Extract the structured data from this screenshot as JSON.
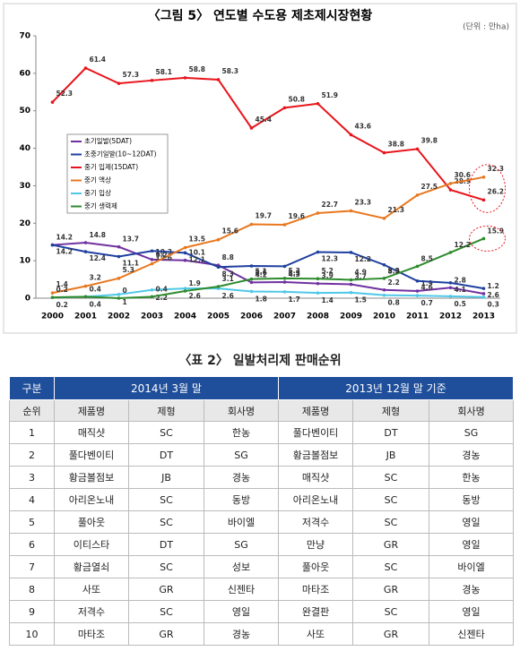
{
  "chart_data": {
    "type": "line",
    "title": "〈그림 5〉 연도별 수도용 제초제시장현황",
    "subtitle": "(단위 : 만ha)",
    "categories": [
      "2000",
      "2001",
      "2002",
      "2003",
      "2004",
      "2005",
      "2006",
      "2007",
      "2008",
      "2009",
      "2010",
      "2011",
      "2012",
      "2013"
    ],
    "ylim": [
      0,
      70
    ],
    "yticks": [
      0,
      10,
      20,
      30,
      40,
      50,
      60,
      70
    ],
    "series": [
      {
        "name": "초기일발(5DAT)",
        "color": "#7030a0",
        "values": [
          14.2,
          14.8,
          13.7,
          10.3,
          10.1,
          8.8,
          4.2,
          4.3,
          3.9,
          3.7,
          2.2,
          1.9,
          2.8,
          1.2
        ]
      },
      {
        "name": "초중기일발(10~12DAT)",
        "color": "#1f3f9f",
        "values": [
          14.2,
          12.4,
          11.1,
          12.6,
          12.1,
          8.3,
          8.6,
          8.5,
          12.3,
          12.2,
          8.9,
          4.6,
          4.1,
          2.6
        ]
      },
      {
        "name": "중기 입제(15DAT)",
        "color": "#e8141b",
        "values": [
          52.3,
          61.4,
          57.3,
          58.1,
          58.8,
          58.3,
          45.4,
          50.8,
          51.9,
          43.6,
          38.8,
          39.8,
          28.9,
          26.2
        ]
      },
      {
        "name": "중기 액상",
        "color": "#e8781f",
        "values": [
          1.4,
          3.2,
          5.3,
          9.2,
          13.5,
          15.6,
          19.7,
          19.6,
          22.7,
          23.3,
          21.3,
          27.5,
          30.6,
          32.3
        ]
      },
      {
        "name": "중기 입상",
        "color": "#4fc8e8",
        "values": [
          0.2,
          0.4,
          1,
          2.2,
          2.6,
          2.6,
          1.8,
          1.7,
          1.4,
          1.5,
          0.8,
          0.7,
          0.5,
          0.3
        ]
      },
      {
        "name": "중기 생력제",
        "color": "#2e8b2e",
        "values": [
          0.2,
          0.4,
          0,
          0.4,
          1.9,
          3.1,
          5.1,
          5.3,
          5.2,
          4.9,
          5.3,
          8.5,
          12.2,
          15.9
        ]
      }
    ]
  },
  "table": {
    "title": "〈표 2〉 일발처리제 판매순위",
    "group_header": [
      "구분",
      "2014년 3월 말",
      "2013년 12월 말 기준"
    ],
    "columns": [
      "순위",
      "제품명",
      "제형",
      "회사명",
      "제품명",
      "제형",
      "회사명"
    ],
    "rows": [
      [
        "1",
        "매직샷",
        "SC",
        "한농",
        "풀다벤이티",
        "DT",
        "SG"
      ],
      [
        "2",
        "풀다벤이티",
        "DT",
        "SG",
        "황금볼점보",
        "JB",
        "경농"
      ],
      [
        "3",
        "황금볼점보",
        "JB",
        "경농",
        "매직샷",
        "SC",
        "한농"
      ],
      [
        "4",
        "아리온노내",
        "SC",
        "동방",
        "아리온노내",
        "SC",
        "동방"
      ],
      [
        "5",
        "풀아웃",
        "SC",
        "바이엘",
        "저격수",
        "SC",
        "영일"
      ],
      [
        "6",
        "이티스타",
        "DT",
        "SG",
        "만냥",
        "GR",
        "영일"
      ],
      [
        "7",
        "황금열쇠",
        "SC",
        "성보",
        "풀아웃",
        "SC",
        "바이엘"
      ],
      [
        "8",
        "사또",
        "GR",
        "신젠타",
        "마타조",
        "GR",
        "경농"
      ],
      [
        "9",
        "저격수",
        "SC",
        "영일",
        "완결판",
        "SC",
        "영일"
      ],
      [
        "10",
        "마타조",
        "GR",
        "경농",
        "사또",
        "GR",
        "신젠타"
      ]
    ]
  }
}
